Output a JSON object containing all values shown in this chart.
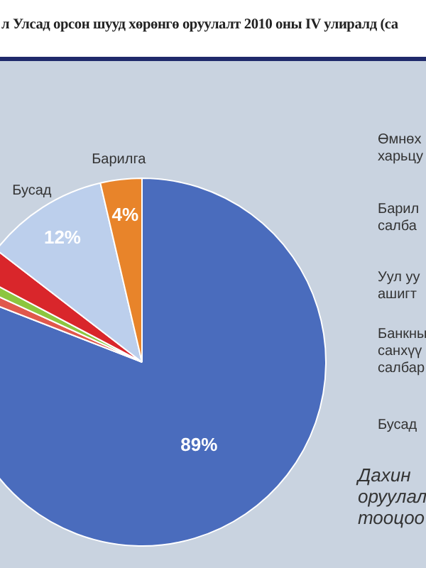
{
  "chart_data": {
    "type": "pie",
    "title": "л Улсад орсон шууд хөрөнгө оруулалт 2010 оны IV улиралд (са",
    "categories": [
      null,
      null,
      null,
      null,
      "Бусад",
      "Барилга"
    ],
    "values": [
      89,
      1,
      1,
      3,
      12,
      4
    ],
    "colors": [
      "#4a6cbd",
      "#e0584c",
      "#8cc63f",
      "#d9262b",
      "#bccfec",
      "#e8842a"
    ],
    "value_labels": [
      "89%",
      null,
      null,
      null,
      "12%",
      "4%"
    ],
    "annotations": [
      "Өмнөх\nхарьцу",
      "Барил\nсалба",
      "Уул уу\nашигт",
      "Банкны\nсанхүү\nсалбар",
      "Бусад",
      "Дахин\nоруулал\nтооцоо"
    ],
    "legend": false
  }
}
